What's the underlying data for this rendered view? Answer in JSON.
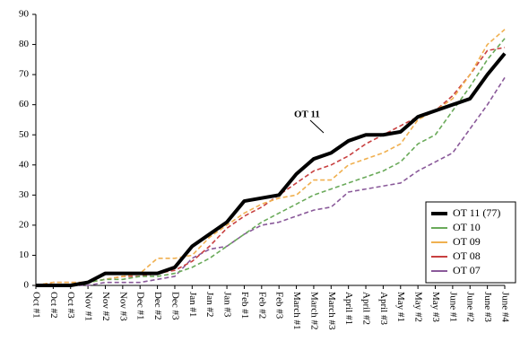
{
  "chart_data": {
    "type": "line",
    "categories": [
      "Oct #1",
      "Oct #2",
      "Oct #3",
      "Nov #1",
      "Nov #2",
      "Nov #3",
      "Dec #1",
      "Dec #2",
      "Dec #3",
      "Jan #1",
      "Jan #2",
      "Jan #3",
      "Feb #1",
      "Feb #2",
      "Feb #3",
      "March #1",
      "March #2",
      "March #3",
      "April #1",
      "April #2",
      "April #3",
      "May #1",
      "May #2",
      "May #3",
      "June #1",
      "June #2",
      "June #3",
      "June #4"
    ],
    "series": [
      {
        "name": "OT 11 (77)",
        "color": "#000000",
        "dashed": false,
        "values": [
          0,
          0,
          0,
          1,
          4,
          4,
          4,
          4,
          6,
          13,
          17,
          21,
          28,
          29,
          30,
          37,
          42,
          44,
          48,
          50,
          50,
          51,
          56,
          58,
          60,
          62,
          70,
          77
        ]
      },
      {
        "name": "OT 10",
        "color": "#6aaa5a",
        "dashed": true,
        "values": [
          0,
          0,
          0,
          1,
          2,
          2,
          3,
          3,
          4,
          6,
          9,
          13,
          17,
          21,
          24,
          27,
          30,
          32,
          34,
          36,
          38,
          41,
          47,
          50,
          58,
          66,
          75,
          82
        ]
      },
      {
        "name": "OT 09",
        "color": "#f0b050",
        "dashed": true,
        "values": [
          0,
          1,
          1,
          1,
          2,
          3,
          4,
          9,
          9,
          10,
          16,
          20,
          24,
          27,
          29,
          30,
          35,
          35,
          40,
          42,
          44,
          47,
          55,
          58,
          62,
          70,
          80,
          85
        ]
      },
      {
        "name": "OT 08",
        "color": "#c84040",
        "dashed": true,
        "values": [
          0,
          1,
          1,
          1,
          2,
          3,
          3,
          4,
          5,
          8,
          13,
          19,
          23,
          26,
          30,
          34,
          38,
          40,
          43,
          47,
          50,
          53,
          56,
          58,
          63,
          70,
          78,
          79
        ]
      },
      {
        "name": "OT 07",
        "color": "#8a5a9a",
        "dashed": true,
        "values": [
          0,
          0,
          0,
          0,
          1,
          1,
          1,
          2,
          3,
          9,
          12,
          13,
          17,
          20,
          21,
          23,
          25,
          26,
          31,
          32,
          33,
          34,
          38,
          41,
          44,
          52,
          60,
          69
        ]
      }
    ],
    "annotation": "OT 11",
    "ylim": [
      0,
      90
    ],
    "yticks": [
      0,
      10,
      20,
      30,
      40,
      50,
      60,
      70,
      80,
      90
    ],
    "grid": false,
    "legend": "lower right"
  }
}
